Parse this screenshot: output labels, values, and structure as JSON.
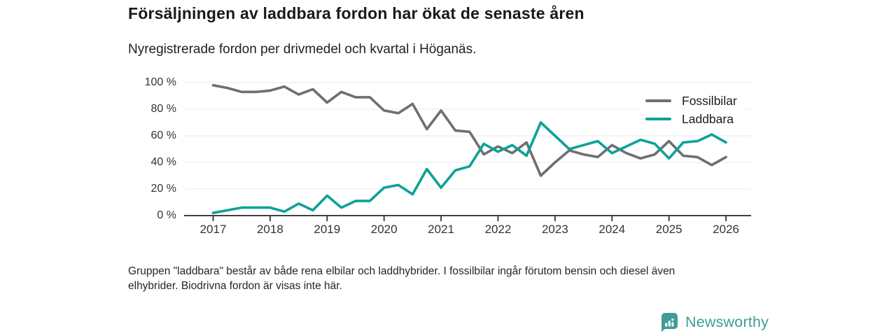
{
  "header": {
    "title": "Försäljningen av laddbara fordon har ökat de senaste åren",
    "subtitle": "Nyregistrerade fordon per drivmedel och kvartal i Höganäs."
  },
  "chart_data": {
    "type": "line",
    "x_unit": "quarter",
    "categories": [
      "2017-Q1",
      "2017-Q2",
      "2017-Q3",
      "2017-Q4",
      "2018-Q1",
      "2018-Q2",
      "2018-Q3",
      "2018-Q4",
      "2019-Q1",
      "2019-Q2",
      "2019-Q3",
      "2019-Q4",
      "2020-Q1",
      "2020-Q2",
      "2020-Q3",
      "2020-Q4",
      "2021-Q1",
      "2021-Q2",
      "2021-Q3",
      "2021-Q4",
      "2022-Q1",
      "2022-Q2",
      "2022-Q3",
      "2022-Q4",
      "2023-Q1",
      "2023-Q2",
      "2023-Q3",
      "2023-Q4",
      "2024-Q1",
      "2024-Q2",
      "2024-Q3",
      "2024-Q4",
      "2025-Q1",
      "2025-Q2",
      "2025-Q3",
      "2025-Q4",
      "2026-Q1"
    ],
    "series": [
      {
        "name": "Fossilbilar",
        "color": "#6e6e73",
        "values": [
          98,
          96,
          93,
          93,
          94,
          97,
          91,
          95,
          85,
          93,
          89,
          89,
          79,
          77,
          84,
          65,
          79,
          64,
          63,
          46,
          52,
          47,
          55,
          30,
          40,
          49,
          46,
          44,
          53,
          47,
          43,
          46,
          56,
          45,
          44,
          38,
          44
        ]
      },
      {
        "name": "Laddbara",
        "color": "#0ca296",
        "values": [
          2,
          4,
          6,
          6,
          6,
          3,
          9,
          4,
          15,
          6,
          11,
          11,
          21,
          23,
          16,
          35,
          21,
          34,
          37,
          54,
          48,
          53,
          45,
          70,
          60,
          50,
          53,
          56,
          47,
          52,
          57,
          54,
          43,
          55,
          56,
          61,
          55
        ]
      }
    ],
    "ylim": [
      0,
      100
    ],
    "yticks": [
      {
        "label": "100 %",
        "value": 100
      },
      {
        "label": "80 %",
        "value": 80
      },
      {
        "label": "60 %",
        "value": 60
      },
      {
        "label": "40 %",
        "value": 40
      },
      {
        "label": "20 %",
        "value": 20
      },
      {
        "label": "0 %",
        "value": 0
      }
    ],
    "xticks": [
      {
        "label": "2017",
        "quarter_index": 0
      },
      {
        "label": "2018",
        "quarter_index": 4
      },
      {
        "label": "2019",
        "quarter_index": 8
      },
      {
        "label": "2020",
        "quarter_index": 12
      },
      {
        "label": "2021",
        "quarter_index": 16
      },
      {
        "label": "2022",
        "quarter_index": 20
      },
      {
        "label": "2023",
        "quarter_index": 24
      },
      {
        "label": "2024",
        "quarter_index": 28
      },
      {
        "label": "2025",
        "quarter_index": 32
      },
      {
        "label": "2026",
        "quarter_index": 36
      }
    ],
    "legend_position": "top-right",
    "grid": "horizontal",
    "colors": {
      "grid": "#e8e8e8",
      "axis": "#414141"
    }
  },
  "footnote": {
    "line1": "Gruppen \"laddbara\" består av både rena elbilar och laddhybrider. I fossilbilar ingår förutom bensin och diesel även",
    "line2": "elhybrider. Biodrivna fordon är visas inte här."
  },
  "logo": {
    "text": "Newsworthy",
    "icon": "bar-chart-badge-icon",
    "color": "#3f9c99"
  }
}
